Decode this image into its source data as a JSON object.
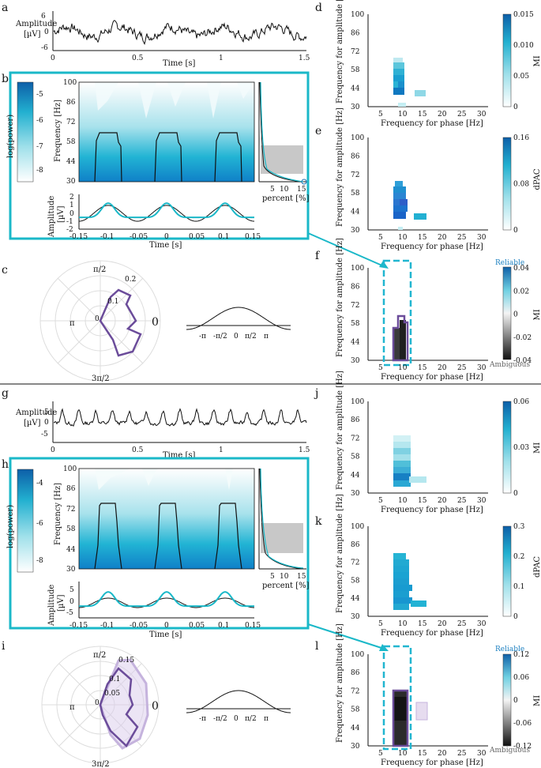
{
  "panel_labels": {
    "a": "a",
    "b": "b",
    "c": "c",
    "d": "d",
    "e": "e",
    "f": "f",
    "g": "g",
    "h": "h",
    "i": "i",
    "j": "j",
    "k": "k",
    "l": "l"
  },
  "axes": {
    "time": "Time [s]",
    "amp_uv": "Amplitude",
    "uv": "[µV]",
    "freq_hz": "Frequency [Hz]",
    "log_power": "log(power)",
    "percent": "percent [%]",
    "freq_amp": "Frequency for amplitude [Hz]",
    "freq_phase": "Frequency for phase [Hz]",
    "mi": "MI",
    "dpac": "dPAC",
    "reliable": "Reliable",
    "ambiguous": "Ambiguous"
  },
  "ticks": {
    "time_long": [
      "0",
      "0.5",
      "1",
      "1.5"
    ],
    "a_y": [
      "6",
      "0",
      "-6"
    ],
    "g_y": [
      "5",
      "0",
      "-5"
    ],
    "spec_y": [
      "100",
      "86",
      "72",
      "58",
      "44",
      "30"
    ],
    "spec_x": [
      "-0.15",
      "-0.1",
      "-0.05",
      "0",
      "0.05",
      "0.1",
      "0.15"
    ],
    "comod_x": [
      "5",
      "10",
      "15",
      "20",
      "25",
      "30"
    ],
    "comod_y": [
      "100",
      "86",
      "72",
      "58",
      "44",
      "30"
    ],
    "percent_x": [
      "5",
      "10",
      "15"
    ],
    "b_cbar": [
      "-5",
      "-6",
      "-7",
      "-8"
    ],
    "h_cbar": [
      "-4",
      "-6",
      "-8"
    ],
    "b_amp_y": [
      "2",
      "1",
      "0",
      "-1",
      "-2"
    ],
    "h_amp_y": [
      "5",
      "0",
      "-5"
    ],
    "d_cbar": [
      "0.015",
      "0.010",
      "0.05",
      "0"
    ],
    "e_cbar": [
      "0.16",
      "0.08",
      "0"
    ],
    "f_cbar": [
      "0.04",
      "0.02",
      "0",
      "-0.02",
      "-0.04"
    ],
    "j_cbar": [
      "0.06",
      "0.03",
      "0"
    ],
    "k_cbar": [
      "0.3",
      "0.2",
      "0.1",
      "0"
    ],
    "l_cbar": [
      "0.12",
      "0.06",
      "0",
      "-0.06",
      "-0.12"
    ],
    "polar_angles": [
      "π/2",
      "π",
      "0",
      "3π/2"
    ],
    "c_radii": [
      "0.2",
      "0.1",
      "0"
    ],
    "i_radii": [
      "0.15",
      "0.1",
      "0.05",
      "0"
    ],
    "phase_x": [
      "-π",
      "-π/2",
      "0",
      "π/2",
      "π"
    ],
    "phase_x_wide": [
      "-π",
      "-π/2",
      "0",
      "π/2",
      "π"
    ]
  },
  "colors": {
    "frame": "#1ab8c8",
    "purple": "#6b4c9a",
    "dash": "#21b6d0",
    "cyan": "#1ab8c8",
    "ink": "#111111"
  }
}
